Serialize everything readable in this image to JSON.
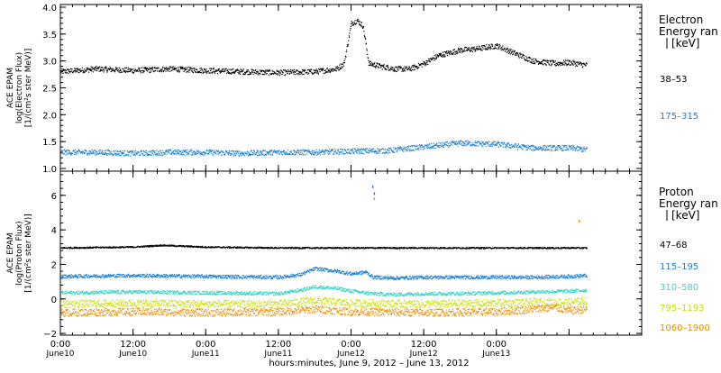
{
  "chart_data": [
    {
      "type": "scatter",
      "ylabel": [
        "ACE EPAM",
        "log(Electron Flux)",
        "[1/(cm²s ster MeV)]"
      ],
      "ylim": [
        0.95,
        4.05
      ],
      "yticks": [
        1.0,
        1.5,
        2.0,
        2.5,
        3.0,
        3.5,
        4.0
      ],
      "ytick_labels": [
        "1.0",
        "1.5",
        "2.0",
        "2.5",
        "3.0",
        "3.5",
        "4.0"
      ],
      "legend_title": [
        "Electron",
        "Energy ran",
        "[keV]"
      ],
      "series": [
        {
          "name": "38–53",
          "color": "#000000",
          "x": [
            0,
            0.25,
            0.5,
            0.75,
            1.0,
            1.25,
            1.5,
            1.75,
            1.9,
            1.95,
            2.0,
            2.04,
            2.08,
            2.12,
            2.2,
            2.3,
            2.4,
            2.5,
            2.6,
            2.75,
            2.85,
            3.0,
            3.25,
            3.4,
            3.5,
            3.62
          ],
          "y": [
            2.8,
            2.85,
            2.82,
            2.85,
            2.82,
            2.8,
            2.78,
            2.8,
            2.85,
            2.95,
            3.7,
            3.75,
            3.65,
            2.95,
            2.9,
            2.85,
            2.85,
            2.95,
            3.1,
            3.2,
            3.22,
            3.28,
            3.0,
            2.95,
            2.97,
            2.92
          ]
        },
        {
          "name": "175–315",
          "color": "#1a7fd4",
          "x": [
            0,
            0.25,
            0.5,
            0.75,
            1.0,
            1.25,
            1.5,
            1.75,
            2.0,
            2.25,
            2.5,
            2.75,
            3.0,
            3.25,
            3.5,
            3.62
          ],
          "y": [
            1.3,
            1.3,
            1.28,
            1.3,
            1.3,
            1.28,
            1.3,
            1.3,
            1.32,
            1.33,
            1.4,
            1.47,
            1.45,
            1.38,
            1.38,
            1.35
          ]
        }
      ]
    },
    {
      "type": "scatter",
      "ylabel": [
        "ACE EPAM",
        "log(Proton Flux)",
        "[1/(cm²s ster MeV)]"
      ],
      "ylim": [
        -2.1,
        7.4
      ],
      "yticks": [
        -2,
        0,
        2,
        4,
        6
      ],
      "ytick_labels": [
        "−2",
        "0",
        "2",
        "4",
        "6"
      ],
      "legend_title": [
        "Proton",
        "Energy ran",
        "[keV]"
      ],
      "series": [
        {
          "name": "47–68",
          "color": "#000000",
          "x": [
            0,
            0.5,
            0.7,
            1.0,
            1.5,
            2.0,
            2.5,
            3.0,
            3.62
          ],
          "y": [
            2.95,
            3.0,
            3.1,
            3.0,
            2.95,
            2.95,
            2.95,
            2.95,
            2.95
          ]
        },
        {
          "name": "115–195",
          "color": "#1a7fd4",
          "x": [
            0,
            0.5,
            1.0,
            1.5,
            1.65,
            1.75,
            1.9,
            2.0,
            2.1,
            2.15,
            2.3,
            2.5,
            2.75,
            3.0,
            3.25,
            3.5,
            3.62
          ],
          "y": [
            1.3,
            1.35,
            1.3,
            1.25,
            1.4,
            1.75,
            1.6,
            1.45,
            1.55,
            1.25,
            1.2,
            1.25,
            1.25,
            1.25,
            1.25,
            1.3,
            1.35
          ],
          "spike": {
            "x": [
              2.15,
              2.16
            ],
            "y": [
              6.5,
              6.1
            ]
          }
        },
        {
          "name": "310–580",
          "color": "#33d6c8",
          "x": [
            0,
            0.5,
            1.0,
            1.5,
            1.65,
            1.75,
            1.9,
            2.0,
            2.15,
            2.3,
            2.5,
            2.75,
            3.0,
            3.25,
            3.5,
            3.62
          ],
          "y": [
            0.35,
            0.4,
            0.35,
            0.3,
            0.5,
            0.7,
            0.6,
            0.45,
            0.3,
            0.25,
            0.3,
            0.3,
            0.35,
            0.4,
            0.45,
            0.5
          ],
          "spike": {
            "x": [
              2.16
            ],
            "y": [
              5.8
            ]
          }
        },
        {
          "name": "795–1193",
          "color": "#c8e000",
          "x": [
            0,
            0.5,
            1.0,
            1.5,
            1.75,
            2.0,
            2.5,
            3.0,
            3.25,
            3.5,
            3.62
          ],
          "y": [
            -0.3,
            -0.25,
            -0.3,
            -0.3,
            -0.1,
            -0.25,
            -0.3,
            -0.25,
            -0.2,
            -0.2,
            -0.1
          ]
        },
        {
          "name": "1060–1900",
          "color": "#f08c00",
          "x": [
            0,
            0.5,
            1.0,
            1.5,
            1.75,
            2.0,
            2.5,
            3.0,
            3.25,
            3.4,
            3.5,
            3.62
          ],
          "y": [
            -0.8,
            -0.75,
            -0.8,
            -0.75,
            -0.6,
            -0.75,
            -0.8,
            -0.75,
            -0.6,
            -0.5,
            -0.7,
            -0.6
          ],
          "spike": {
            "x": [
              3.57
            ],
            "y": [
              4.5
            ]
          }
        }
      ]
    }
  ],
  "x_axis": {
    "label": "hours:minutes, June 9, 2012 – June 13, 2012",
    "xlim": [
      0,
      4.0
    ],
    "major_ticks": [
      0,
      0.5,
      1.0,
      1.5,
      2.0,
      2.5,
      3.0,
      3.5
    ],
    "tick_labels": [
      [
        "0:00",
        "June10"
      ],
      [
        "12:00",
        "June10"
      ],
      [
        "0:00",
        "June11"
      ],
      [
        "12:00",
        "June11"
      ],
      [
        "0:00",
        "June12"
      ],
      [
        "12:00",
        "June12"
      ],
      [
        "0:00",
        "June13"
      ],
      [
        "",
        ""
      ]
    ]
  }
}
